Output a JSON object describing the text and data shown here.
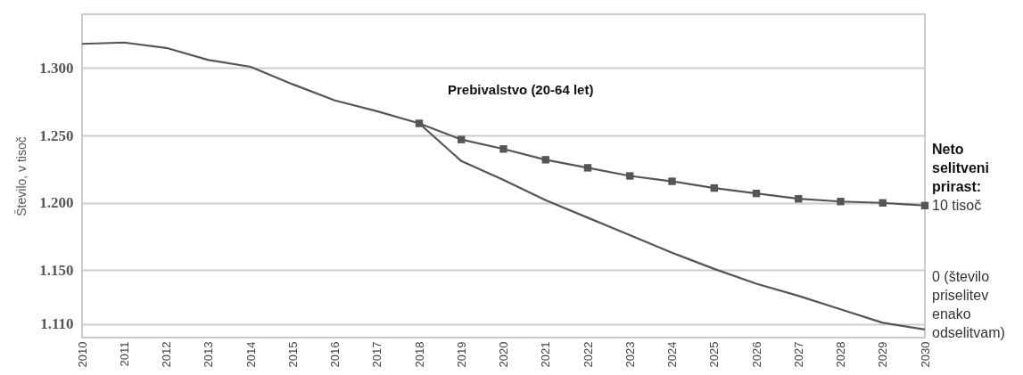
{
  "chart_data": {
    "type": "line",
    "ylabel": "Število, v tisoč",
    "legend_title": "Neto selitveni prirast:",
    "categories": [
      "2010",
      "2011",
      "2012",
      "2013",
      "2014",
      "2015",
      "2016",
      "2017",
      "2018",
      "2019",
      "2020",
      "2021",
      "2022",
      "2023",
      "2024",
      "2025",
      "2026",
      "2027",
      "2028",
      "2029",
      "2030"
    ],
    "series": [
      {
        "color": "#555555",
        "marker": "none",
        "values": [
          1318,
          1319,
          1315,
          1306,
          1301,
          1288,
          1276,
          1268,
          1259,
          null,
          null,
          null,
          null,
          null,
          null,
          null,
          null,
          null,
          null,
          null,
          null
        ]
      },
      {
        "name": "10 tisoč",
        "color": "#555555",
        "marker": "square",
        "values": [
          null,
          null,
          null,
          null,
          null,
          null,
          null,
          null,
          1259,
          1247,
          1240,
          1232,
          1226,
          1220,
          1216,
          1211,
          1207,
          1203,
          1201,
          1200,
          1198
        ]
      },
      {
        "name": "0 (število priselitev enako odselitvam)",
        "color": "#555555",
        "marker": "none",
        "values": [
          null,
          null,
          null,
          null,
          null,
          null,
          null,
          null,
          1259,
          1231,
          1217,
          1202,
          1189,
          1176,
          1163,
          1151,
          1140,
          1131,
          1121,
          1111,
          1106
        ]
      }
    ],
    "ylim": [
      1100,
      1340
    ],
    "yticks": [
      {
        "value": 1110,
        "label": "1.110"
      },
      {
        "value": 1150,
        "label": "1.150"
      },
      {
        "value": 1200,
        "label": "1.200"
      },
      {
        "value": 1250,
        "label": "1.250"
      },
      {
        "value": 1300,
        "label": "1.300"
      }
    ],
    "grid": "y",
    "line_style": "solid",
    "annotations": [
      "Prebivalstvo (20-64 let)"
    ]
  }
}
